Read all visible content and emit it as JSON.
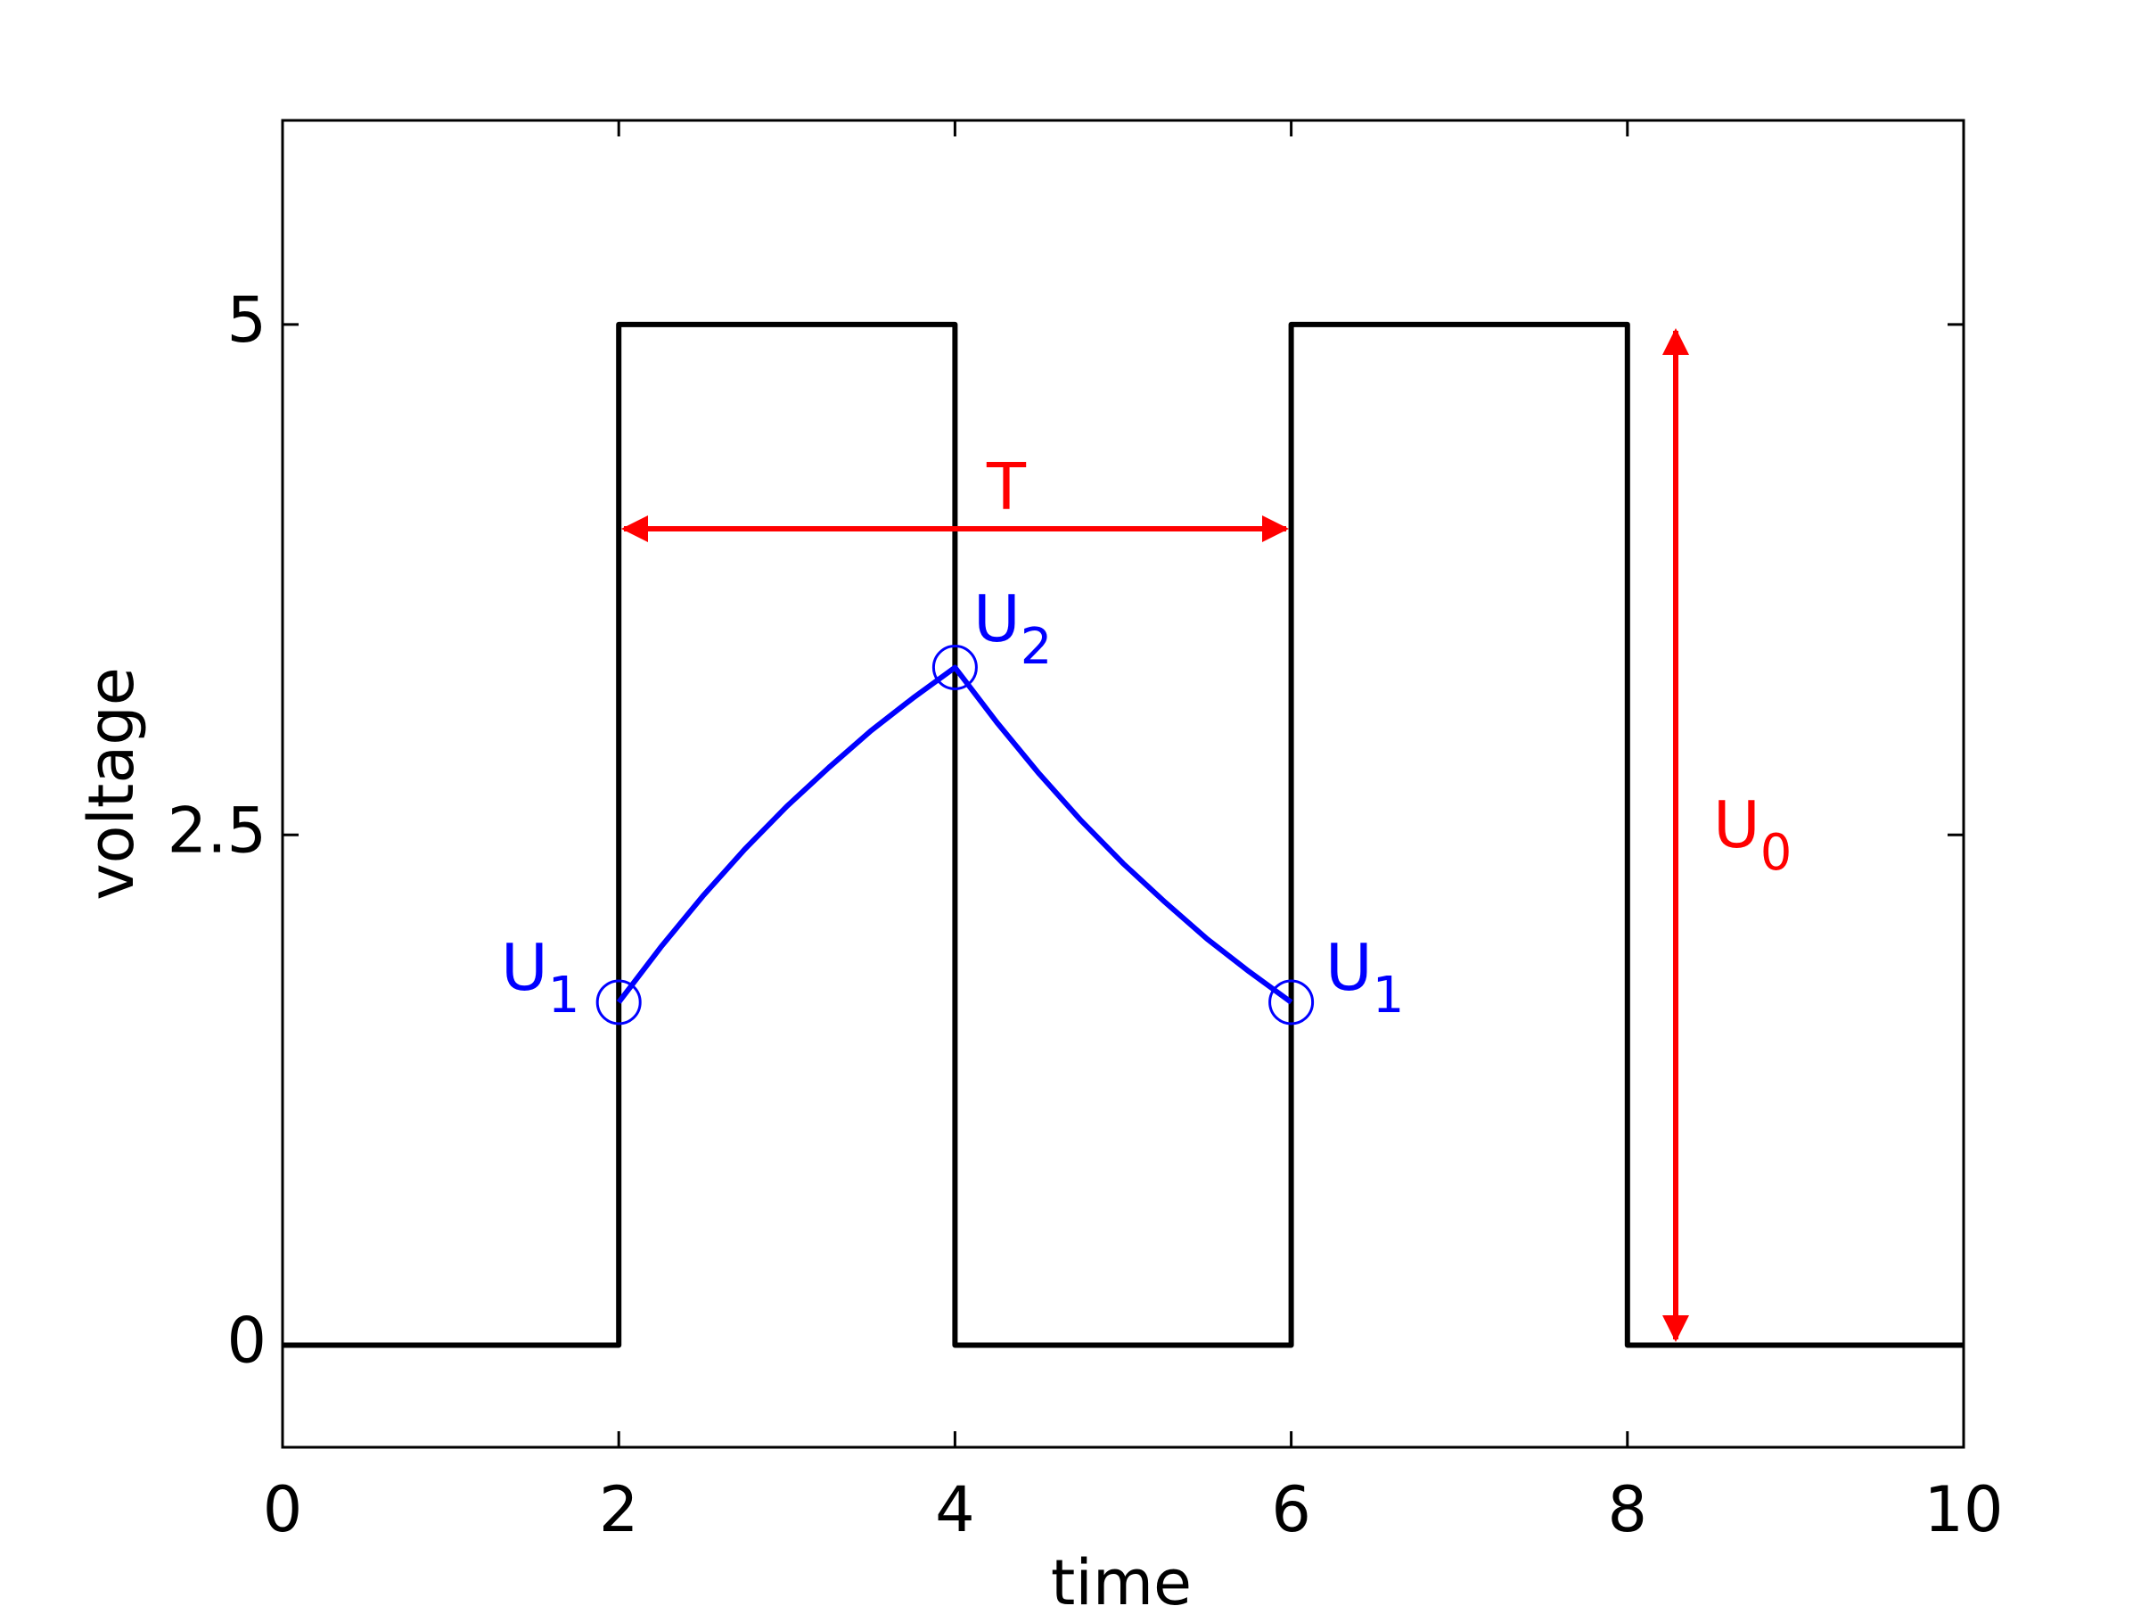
{
  "chart_data": {
    "type": "line",
    "xlabel": "time",
    "ylabel": "voltage",
    "xlim": [
      0,
      10
    ],
    "xticks": [
      0,
      2,
      4,
      6,
      8,
      10
    ],
    "ylim": [
      -0.5,
      6
    ],
    "yticks": [
      0,
      2.5,
      5
    ],
    "series": [
      {
        "color": "#000000",
        "x": [
          0,
          2,
          2,
          4,
          4,
          6,
          6,
          8,
          8,
          10
        ],
        "values": [
          0,
          0,
          5,
          5,
          0,
          0,
          5,
          5,
          0,
          0
        ]
      },
      {
        "color": "#0000ff",
        "x": [
          2,
          2.25,
          2.5,
          2.75,
          3,
          3.25,
          3.5,
          3.75,
          4,
          4.25,
          4.5,
          4.75,
          5,
          5.25,
          5.5,
          5.75,
          6
        ],
        "values": [
          1.68,
          1.95,
          2.2,
          2.43,
          2.64,
          2.83,
          3.01,
          3.17,
          3.32,
          3.05,
          2.8,
          2.57,
          2.36,
          2.17,
          1.99,
          1.83,
          1.68
        ]
      },
      {
        "color": "#0000ff",
        "marker": "circle",
        "x": [
          2,
          4,
          6
        ],
        "values": [
          1.68,
          3.32,
          1.68
        ]
      }
    ],
    "annotations": [
      {
        "text": "U",
        "sub": "1"
      },
      {
        "text": "U",
        "sub": "2"
      },
      {
        "text": "U",
        "sub": "1"
      },
      {
        "text": "T"
      },
      {
        "text": "U",
        "sub": "0"
      }
    ]
  }
}
